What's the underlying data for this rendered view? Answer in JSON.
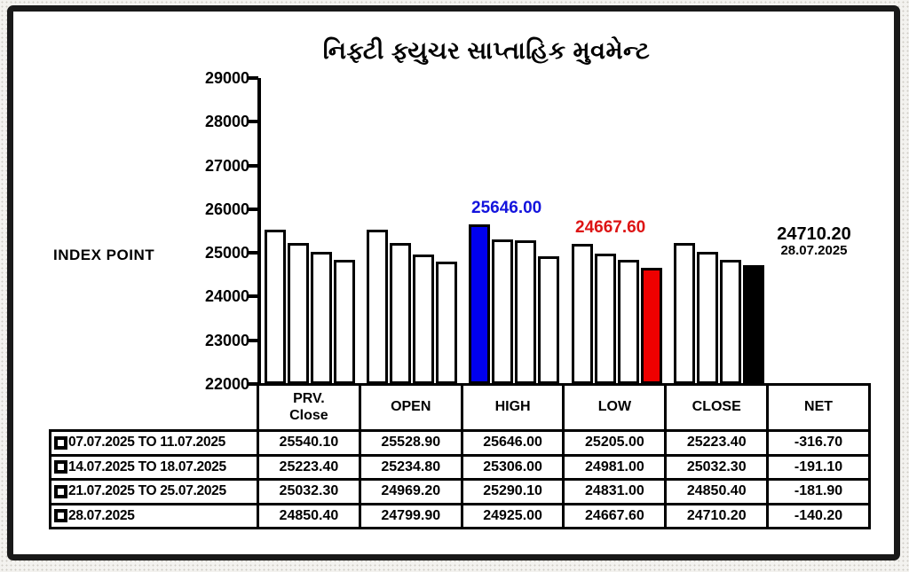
{
  "title": {
    "text": "નિફ્ટી ફ્યુચર સાપ્તાહિક મુવમેન્ટ",
    "color": "#1414dd"
  },
  "chart_data": {
    "type": "bar",
    "title": "નિફ્ટી ફ્યુચર સાપ્તાહિક મુવમેન્ટ",
    "ylabel": "INDEX POINT",
    "ylim": [
      22000,
      29000
    ],
    "ytick_step": 1000,
    "ytick_labels": [
      "29000",
      "28000",
      "27000",
      "26000",
      "25000",
      "24000",
      "23000",
      "22000"
    ],
    "grid": false,
    "categories": [
      "PRV. Close",
      "OPEN",
      "HIGH",
      "LOW",
      "CLOSE",
      "NET"
    ],
    "series": [
      {
        "name": "07.07.2025 TO 11.07.2025",
        "values": [
          25540.1,
          25528.9,
          25646.0,
          25205.0,
          25223.4,
          -316.7
        ]
      },
      {
        "name": "14.07.2025 TO 18.07.2025",
        "values": [
          25223.4,
          25234.8,
          25306.0,
          24981.0,
          25032.3,
          -191.1
        ]
      },
      {
        "name": "21.07.2025 TO 25.07.2025",
        "values": [
          25032.3,
          24969.2,
          25290.1,
          24831.0,
          24850.4,
          -181.9
        ]
      },
      {
        "name": "28.07.2025",
        "values": [
          24850.4,
          24799.9,
          24925.0,
          24667.6,
          24710.2,
          -140.2
        ]
      }
    ],
    "bar_default_fill": "#ffffff",
    "bar_border": "#000000",
    "highlight_bars": [
      {
        "category": "HIGH",
        "series_index": 0,
        "color": "#0000ee"
      },
      {
        "category": "LOW",
        "series_index": 3,
        "color": "#ee0000"
      },
      {
        "category": "CLOSE",
        "series_index": 3,
        "color": "#000000"
      }
    ]
  },
  "annotations": {
    "high": {
      "text": "25646.00",
      "color": "#1414dd"
    },
    "low": {
      "text": "24667.60",
      "color": "#dd1414"
    },
    "last": {
      "text": "24710.20",
      "date": "28.07.2025",
      "color": "#000000"
    }
  },
  "table": {
    "headers": [
      "PRV.\nClose",
      "OPEN",
      "HIGH",
      "LOW",
      "CLOSE",
      "NET"
    ],
    "rows": [
      {
        "label": "07.07.2025 TO 11.07.2025",
        "values": [
          "25540.10",
          "25528.90",
          "25646.00",
          "25205.00",
          "25223.40",
          "-316.70"
        ]
      },
      {
        "label": "14.07.2025 TO 18.07.2025",
        "values": [
          "25223.40",
          "25234.80",
          "25306.00",
          "24981.00",
          "25032.30",
          "-191.10"
        ]
      },
      {
        "label": "21.07.2025 TO 25.07.2025",
        "values": [
          "25032.30",
          "24969.20",
          "25290.10",
          "24831.00",
          "24850.40",
          "-181.90"
        ]
      },
      {
        "label": "28.07.2025",
        "values": [
          "24850.40",
          "24799.90",
          "24925.00",
          "24667.60",
          "24710.20",
          "-140.20"
        ]
      }
    ]
  }
}
